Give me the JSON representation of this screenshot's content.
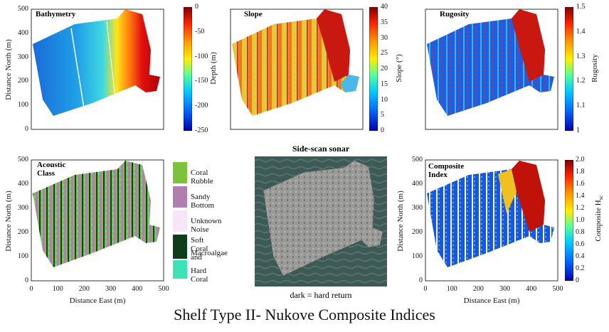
{
  "title": "Shelf Type II- Nukove Composite Indices",
  "chart_data": [
    {
      "type": "heatmap",
      "title": "Bathymetry",
      "ylabel": "Distance North (m)",
      "xlabel": "",
      "ylim": [
        0,
        500
      ],
      "yticks": [
        0,
        100,
        200,
        300,
        400,
        500
      ],
      "colorbar": {
        "label": "Depth (m)",
        "range": [
          -250,
          0
        ],
        "ticks": [
          "0",
          "-50",
          "-100",
          "-150",
          "-200",
          "-250"
        ],
        "colors": [
          "#7f0000",
          "#ff2200",
          "#ff9900",
          "#ffee00",
          "#55ff99",
          "#00ccff",
          "#0066ff",
          "#0000aa"
        ]
      }
    },
    {
      "type": "heatmap",
      "title": "Slope",
      "ylabel": "",
      "xlabel": "",
      "colorbar": {
        "label": "Slope (°)",
        "range": [
          0,
          40
        ],
        "ticks": [
          "40",
          "35",
          "30",
          "25",
          "20",
          "15",
          "10",
          "5",
          "0"
        ],
        "colors": [
          "#7f0000",
          "#ff2200",
          "#ff9900",
          "#ffee00",
          "#55ff99",
          "#00ccff",
          "#0066ff",
          "#0000aa"
        ]
      }
    },
    {
      "type": "heatmap",
      "title": "Rugosity",
      "ylabel": "",
      "xlabel": "",
      "colorbar": {
        "label": "Rugosity",
        "range": [
          1,
          1.5
        ],
        "ticks": [
          "1.5",
          "1.4",
          "1.3",
          "1.2",
          "1.1",
          "1"
        ],
        "colors": [
          "#7f0000",
          "#ff2200",
          "#ff9900",
          "#ffee00",
          "#55ff99",
          "#00ccff",
          "#0066ff",
          "#0000aa"
        ]
      }
    },
    {
      "type": "heatmap",
      "title": "Acoustic Class",
      "ylabel": "Distance North (m)",
      "xlabel": "Distance East (m)",
      "xticks": [
        "0",
        "100",
        "200",
        "300",
        "400",
        "500"
      ],
      "yticks": [
        "0",
        "100",
        "200",
        "300",
        "400",
        "500"
      ],
      "legend": [
        {
          "label": "Coral Rubble",
          "color": "#7cc23a"
        },
        {
          "label": "Sandy Bottom",
          "color": "#b07fb0"
        },
        {
          "label": "Unknown Noise",
          "color": "#f8e6f8"
        },
        {
          "label": "Soft Coral and",
          "label2": "Macroalgae",
          "color": "#0e3d1a"
        },
        {
          "label": "Hard Coral",
          "color": "#3de2b8"
        }
      ]
    },
    {
      "type": "heatmap",
      "title": "Composite Index",
      "ylabel": "Distance North (m)",
      "xlabel": "Distance East (m)",
      "xticks": [
        "0",
        "100",
        "200",
        "300",
        "400",
        "500"
      ],
      "yticks": [
        "0",
        "100",
        "200",
        "300",
        "400",
        "500"
      ],
      "colorbar": {
        "label": "Composite H",
        "label_sub": "sc",
        "range": [
          0,
          2
        ],
        "ticks": [
          "2.0",
          "1.8",
          "1.6",
          "1.4",
          "1.2",
          "1.0",
          "0.8",
          "0.6",
          "0.4",
          "0.2",
          "0"
        ],
        "colors": [
          "#7f0000",
          "#ff2200",
          "#ff9900",
          "#ffee00",
          "#55ff99",
          "#00ccff",
          "#0066ff",
          "#0000aa"
        ]
      }
    }
  ],
  "sonar": {
    "title": "Side-scan sonar",
    "caption": "dark = hard return"
  }
}
